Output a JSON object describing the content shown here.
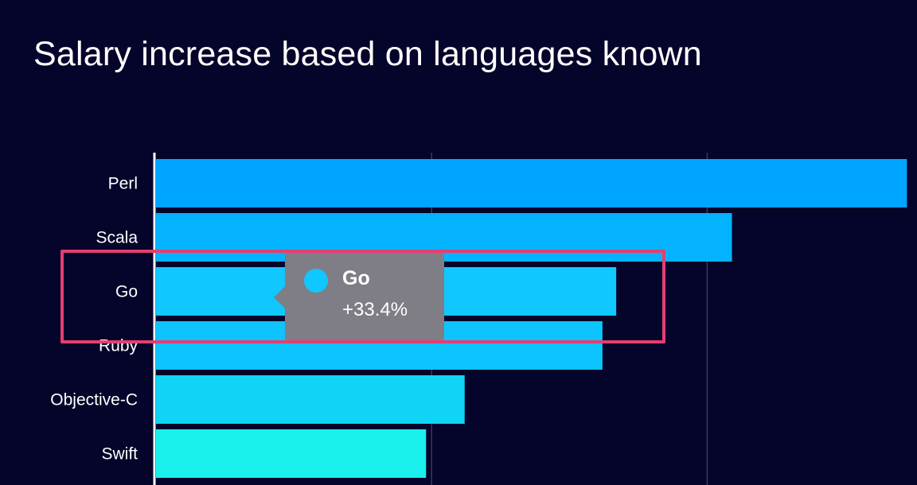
{
  "chart_data": {
    "type": "bar",
    "orientation": "horizontal",
    "title": "Salary increase based on languages known",
    "categories": [
      "Perl",
      "Scala",
      "Go",
      "Ruby",
      "Objective-C",
      "Swift"
    ],
    "values": [
      54.5,
      41.8,
      33.4,
      32.4,
      22.4,
      19.6
    ],
    "unit": "%",
    "xlim": [
      0,
      55
    ],
    "grid": true,
    "legend": "none",
    "colors": [
      "#00a5ff",
      "#03b3ff",
      "#10c7ff",
      "#0dc4ff",
      "#0fd4f6",
      "#19f0ee"
    ]
  },
  "tooltip": {
    "name": "Go",
    "value": "+33.4%",
    "dot_color": "#10c7ff"
  },
  "highlight": {
    "color": "#e43f72"
  }
}
